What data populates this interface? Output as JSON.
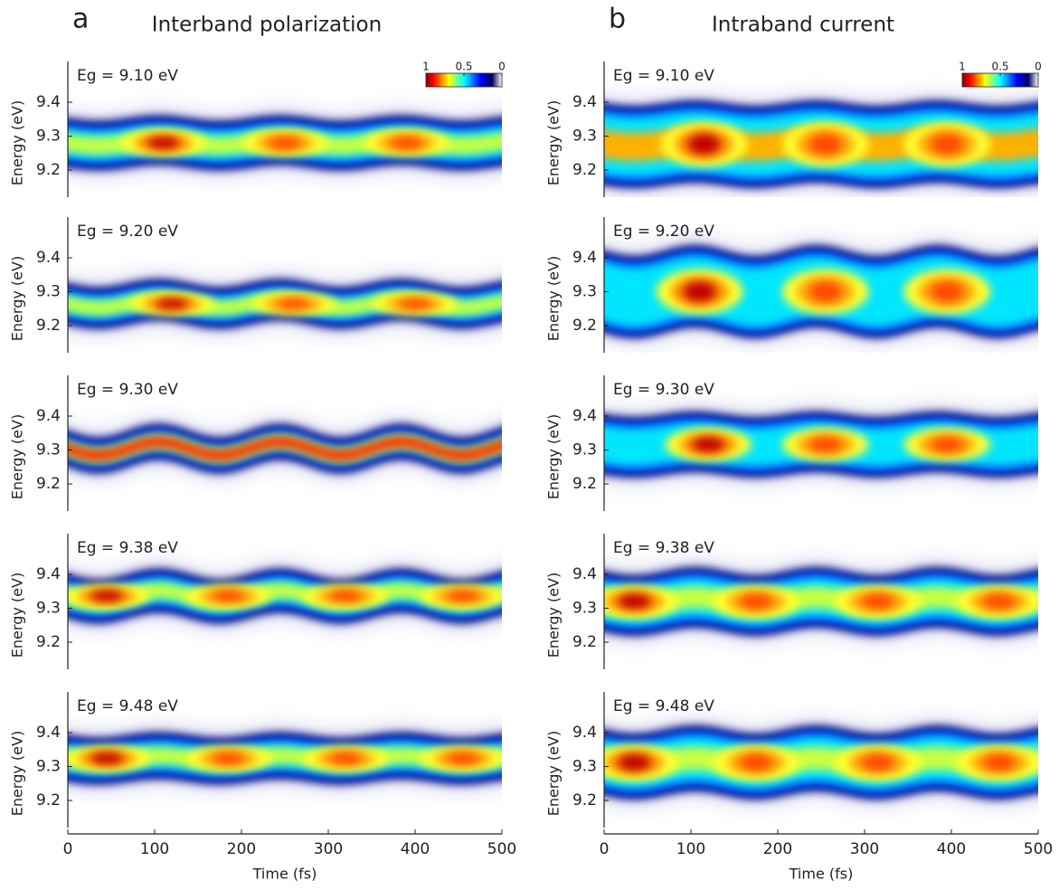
{
  "chart_data": [
    {
      "type": "heatmap",
      "panel_label": "a",
      "title": "Interband polarization",
      "annotation": "Eg = 9.10 eV",
      "ylabel": "Energy (eV)",
      "xlim": [
        0,
        500
      ],
      "ylim": [
        9.12,
        9.52
      ],
      "yticks": [
        9.2,
        9.3,
        9.4
      ],
      "colorbar": {
        "ticks": [
          1,
          0.5,
          0
        ]
      }
    },
    {
      "type": "heatmap",
      "annotation": "Eg = 9.20 eV",
      "ylabel": "Energy (eV)",
      "xlim": [
        0,
        500
      ],
      "ylim": [
        9.12,
        9.52
      ],
      "yticks": [
        9.2,
        9.3,
        9.4
      ]
    },
    {
      "type": "heatmap",
      "annotation": "Eg = 9.30 eV",
      "ylabel": "Energy (eV)",
      "xlim": [
        0,
        500
      ],
      "ylim": [
        9.12,
        9.52
      ],
      "yticks": [
        9.2,
        9.3,
        9.4
      ]
    },
    {
      "type": "heatmap",
      "annotation": "Eg = 9.38 eV",
      "ylabel": "Energy (eV)",
      "xlim": [
        0,
        500
      ],
      "ylim": [
        9.12,
        9.52
      ],
      "yticks": [
        9.2,
        9.3,
        9.4
      ]
    },
    {
      "type": "heatmap",
      "annotation": "Eg = 9.48 eV",
      "ylabel": "Energy (eV)",
      "xlabel": "Time (fs)",
      "xlim": [
        0,
        500
      ],
      "xticks": [
        0,
        100,
        200,
        300,
        400,
        500
      ],
      "ylim": [
        9.12,
        9.52
      ],
      "yticks": [
        9.2,
        9.3,
        9.4
      ]
    },
    {
      "type": "heatmap",
      "panel_label": "b",
      "title": "Intraband current",
      "annotation": "Eg = 9.10 eV",
      "ylabel": "Energy (eV)",
      "xlim": [
        0,
        500
      ],
      "ylim": [
        9.12,
        9.52
      ],
      "yticks": [
        9.2,
        9.3,
        9.4
      ],
      "colorbar": {
        "ticks": [
          1,
          0.5,
          0
        ]
      }
    },
    {
      "type": "heatmap",
      "annotation": "Eg = 9.20 eV",
      "ylabel": "Energy (eV)",
      "xlim": [
        0,
        500
      ],
      "ylim": [
        9.12,
        9.52
      ],
      "yticks": [
        9.2,
        9.3,
        9.4
      ]
    },
    {
      "type": "heatmap",
      "annotation": "Eg = 9.30 eV",
      "ylabel": "Energy (eV)",
      "xlim": [
        0,
        500
      ],
      "ylim": [
        9.12,
        9.52
      ],
      "yticks": [
        9.2,
        9.3,
        9.4
      ]
    },
    {
      "type": "heatmap",
      "annotation": "Eg = 9.38 eV",
      "ylabel": "Energy (eV)",
      "xlim": [
        0,
        500
      ],
      "ylim": [
        9.12,
        9.52
      ],
      "yticks": [
        9.2,
        9.3,
        9.4
      ]
    },
    {
      "type": "heatmap",
      "annotation": "Eg = 9.48 eV",
      "ylabel": "Energy (eV)",
      "xlabel": "Time (fs)",
      "xlim": [
        0,
        500
      ],
      "xticks": [
        0,
        100,
        200,
        300,
        400,
        500
      ],
      "ylim": [
        9.12,
        9.52
      ],
      "yticks": [
        9.2,
        9.3,
        9.4
      ]
    }
  ]
}
